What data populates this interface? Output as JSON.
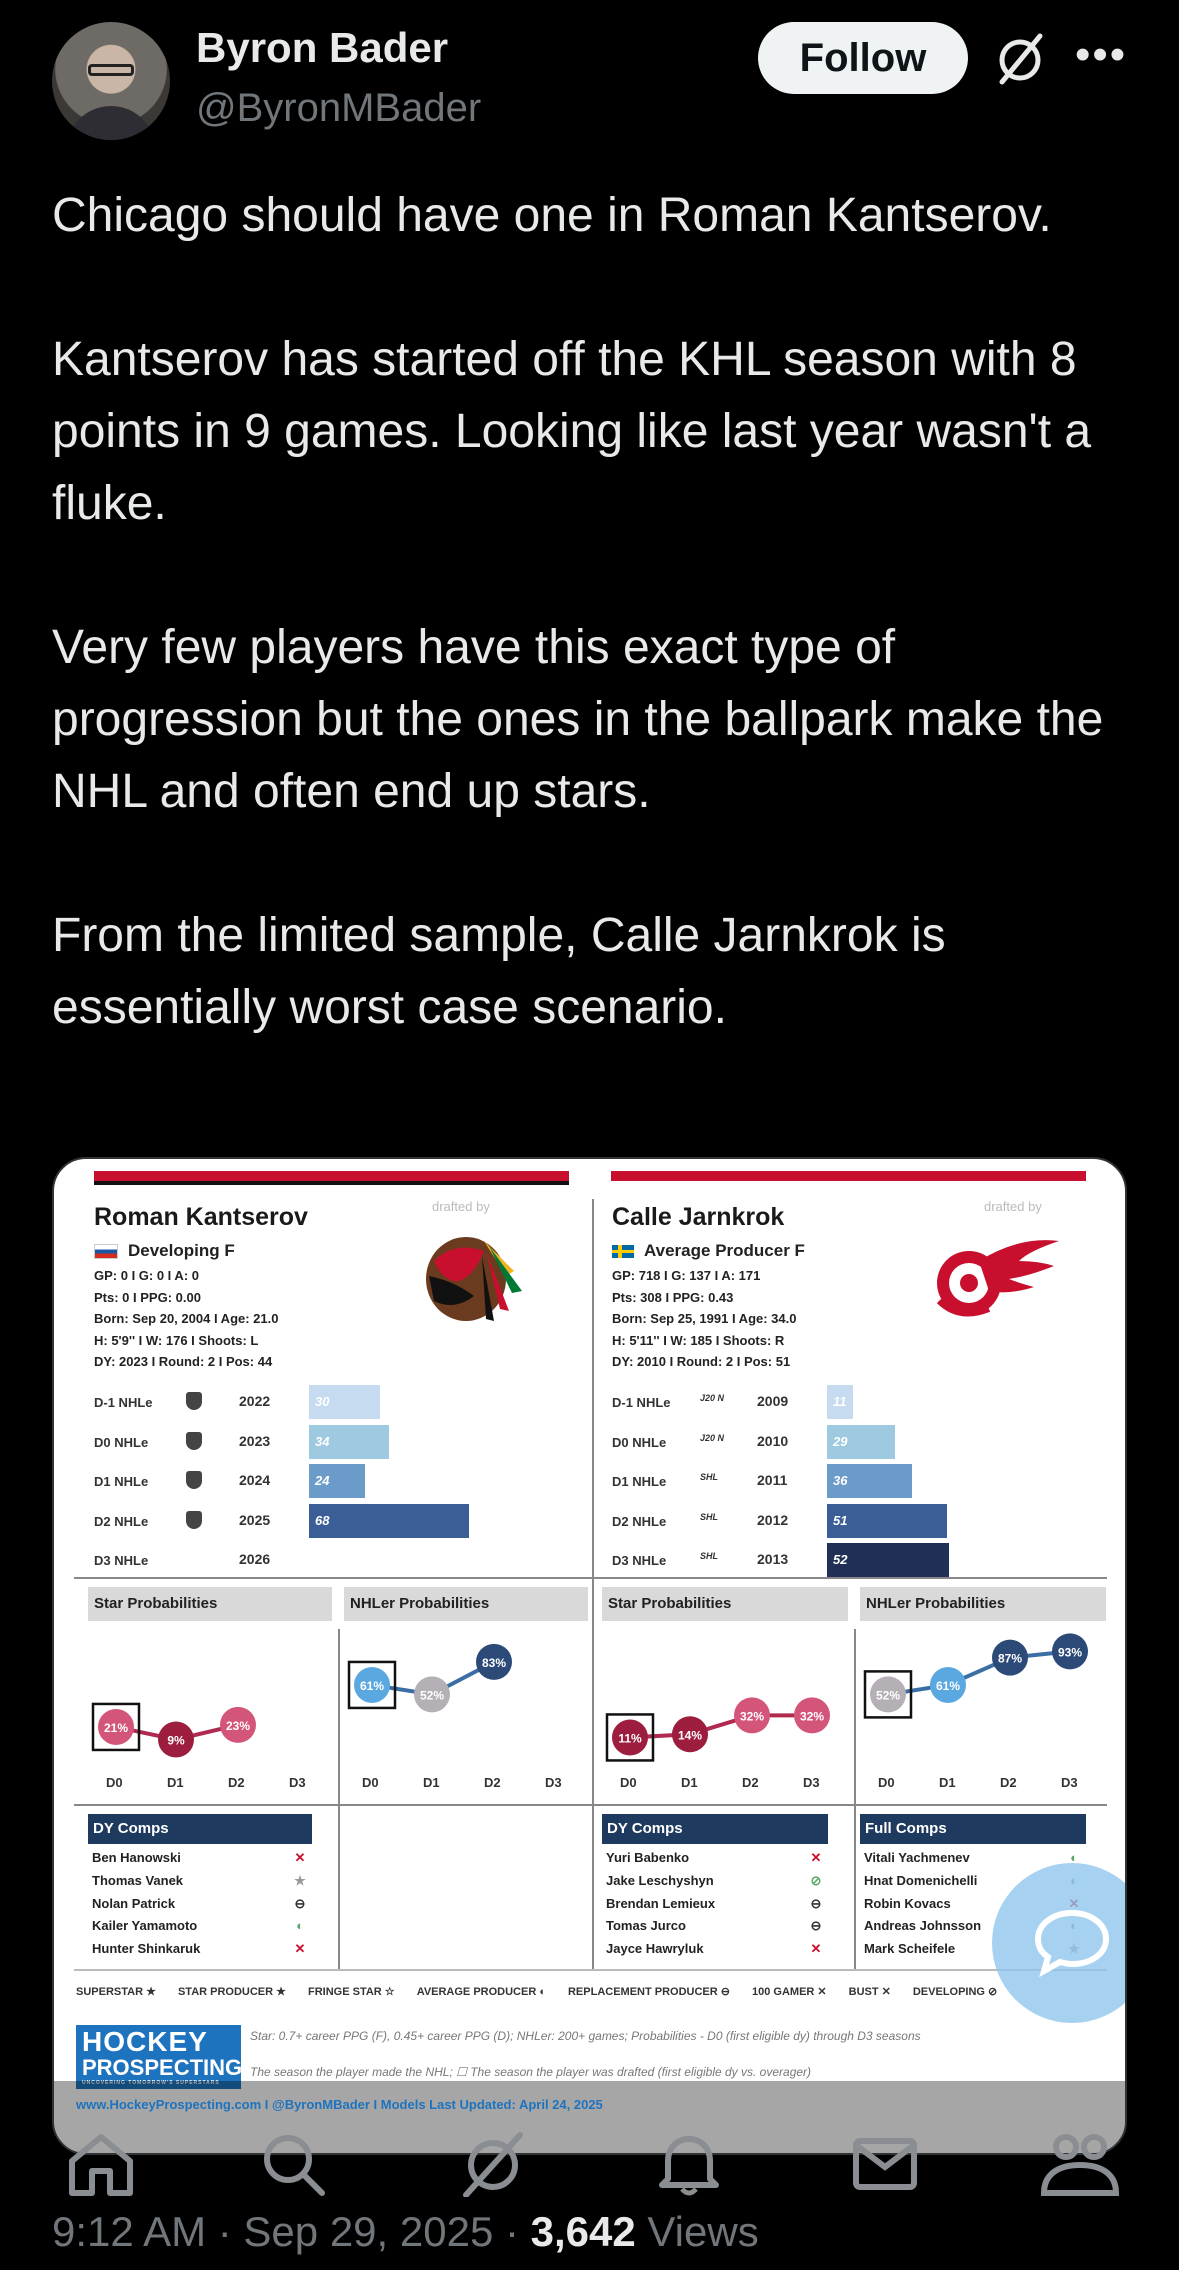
{
  "author": {
    "name": "Byron Bader",
    "handle": "@ByronMBader"
  },
  "follow_label": "Follow",
  "more_label": "•••",
  "tweet_paragraphs": [
    "Chicago should have one in Roman Kantserov.",
    "Kantserov has started off the KHL season with 8 points in 9 games. Looking like last year wasn't a fluke.",
    "Very few players have this exact type of progression but the ones in the ballpark make the NHL and often end up stars.",
    "From the limited sample, Calle Jarnkrok is essentially worst case scenario."
  ],
  "card": {
    "drafted_by": "drafted by",
    "left": {
      "name": "Roman Kantserov",
      "tag": "Developing  F",
      "meta": [
        "GP: 0 I G: 0 I A: 0",
        "Pts: 0 I PPG: 0.00",
        "Born: Sep 20, 2004 I Age: 21.0",
        "H: 5'9'' I W: 176 I Shoots: L",
        "DY: 2023 I Round: 2 I Pos: 44"
      ],
      "seasons": [
        {
          "label": "D-1 NHLe",
          "year": "2022",
          "value": 30
        },
        {
          "label": "D0 NHLe",
          "year": "2023",
          "value": 34
        },
        {
          "label": "D1 NHLe",
          "year": "2024",
          "value": 24
        },
        {
          "label": "D2 NHLe",
          "year": "2025",
          "value": 68
        },
        {
          "label": "D3 NHLe",
          "year": "2026",
          "value": null
        }
      ],
      "star_title": "Star Probabilities",
      "star": [
        "21%",
        "9%",
        "23%"
      ],
      "nhl_title": "NHLer Probabilities",
      "nhl": [
        "61%",
        "52%",
        "83%"
      ],
      "comps_title": "DY Comps",
      "comps": [
        {
          "name": "Ben Hanowski",
          "mark": "✕"
        },
        {
          "name": "Thomas Vanek",
          "mark": "★"
        },
        {
          "name": "Nolan Patrick",
          "mark": "⊖"
        },
        {
          "name": "Kailer Yamamoto",
          "mark": "◐"
        },
        {
          "name": "Hunter Shinkaruk",
          "mark": "✕"
        }
      ]
    },
    "right": {
      "name": "Calle Jarnkrok",
      "tag": "Average Producer  F",
      "meta": [
        "GP: 718 I G: 137 I A: 171",
        "Pts: 308 I PPG: 0.43",
        "Born: Sep 25, 1991 I Age: 34.0",
        "H: 5'11'' I W: 185 I Shoots: R",
        "DY: 2010 I Round: 2 I Pos: 51"
      ],
      "seasons": [
        {
          "label": "D-1 NHLe",
          "league": "J20 N",
          "year": "2009",
          "value": 11
        },
        {
          "label": "D0 NHLe",
          "league": "J20 N",
          "year": "2010",
          "value": 29
        },
        {
          "label": "D1 NHLe",
          "league": "SHL",
          "year": "2011",
          "value": 36
        },
        {
          "label": "D2 NHLe",
          "league": "SHL",
          "year": "2012",
          "value": 51
        },
        {
          "label": "D3 NHLe",
          "league": "SHL",
          "year": "2013",
          "value": 52
        }
      ],
      "star_title": "Star Probabilities",
      "star": [
        "11%",
        "14%",
        "32%",
        "32%"
      ],
      "nhl_title": "NHLer Probabilities",
      "nhl": [
        "52%",
        "61%",
        "87%",
        "93%"
      ],
      "dy_title": "DY Comps",
      "dy_comps": [
        {
          "name": "Yuri Babenko",
          "mark": "✕"
        },
        {
          "name": "Jake Leschyshyn",
          "mark": "⊘"
        },
        {
          "name": "Brendan Lemieux",
          "mark": "⊖"
        },
        {
          "name": "Tomas Jurco",
          "mark": "⊖"
        },
        {
          "name": "Jayce Hawryluk",
          "mark": "✕"
        }
      ],
      "full_title": "Full Comps",
      "full_comps": [
        {
          "name": "Vitali Yachmenev",
          "mark": "◐"
        },
        {
          "name": "Hnat Domenichelli",
          "mark": "◐"
        },
        {
          "name": "Robin Kovacs",
          "mark": "✕"
        },
        {
          "name": "Andreas Johnsson",
          "mark": "◐"
        },
        {
          "name": "Mark Scheifele",
          "mark": "★"
        }
      ]
    },
    "draft_years": [
      "D0",
      "D1",
      "D2",
      "D3"
    ],
    "legend": [
      "SUPERSTAR ★",
      "STAR PRODUCER ★",
      "FRINGE STAR ☆",
      "AVERAGE PRODUCER ◐",
      "REPLACEMENT PRODUCER ⊖",
      "100 GAMER ✕",
      "BUST ✕",
      "DEVELOPING ⊘"
    ],
    "brand_1": "HOCKEY",
    "brand_2": "PROSPECTING",
    "brand_tag": "UNCOVERING TOMORROW'S SUPERSTARS",
    "note": "Star: 0.7+ career PPG (F), 0.45+ career PPG (D); NHLer: 200+ games; Probabilities - D0 (first eligible dy) through D3 seasons",
    "note2": "The season the player made the NHL;  ☐  The season the player was drafted (first eligible dy vs. overager)",
    "footer": "www.HockeyProspecting.com    I    @ByronMBader    I    Models Last Updated: April 24, 2025"
  },
  "timestamp": "9:12 AM · Sep 29, 2025 · ",
  "views_count": "3,642",
  "views_label": " Views"
}
